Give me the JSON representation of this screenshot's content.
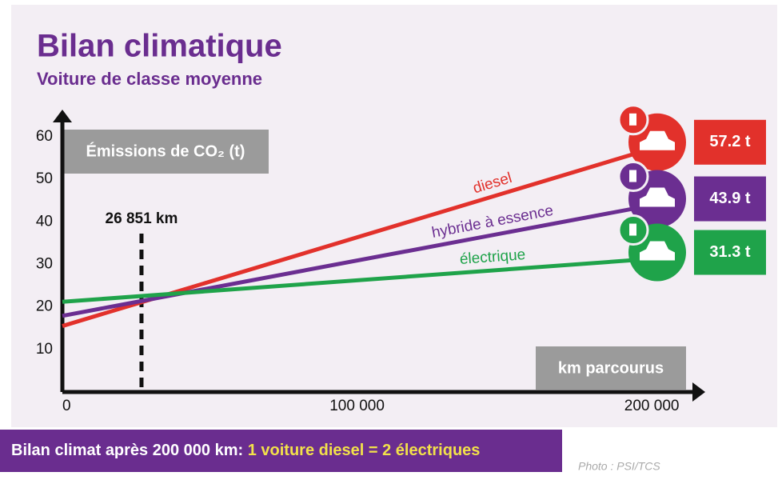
{
  "chart_data": {
    "type": "line",
    "title": "Bilan climatique",
    "subtitle": "Voiture de classe moyenne",
    "y_label": "Émissions de CO₂ (t)",
    "x_label": "km parcourus",
    "x": [
      0,
      200000
    ],
    "series": [
      {
        "name": "diesel",
        "color": "#e2312b",
        "values": [
          15.5,
          57.2
        ],
        "value_labels": [
          null,
          "57.2 t"
        ]
      },
      {
        "name": "hybride à essence",
        "color": "#6b2e91",
        "values": [
          17.9,
          43.9
        ],
        "value_labels": [
          null,
          "43.9 t"
        ]
      },
      {
        "name": "électrique",
        "color": "#1fa34a",
        "values": [
          21.2,
          31.3
        ],
        "value_labels": [
          null,
          "31.3 t"
        ]
      }
    ],
    "xlim": [
      0,
      217600
    ],
    "ylim": [
      0,
      66
    ],
    "xticks": [
      0,
      {
        "value": 100000,
        "label": "100 000"
      },
      {
        "value": 200000,
        "label": "200 000"
      }
    ],
    "yticks": [
      10,
      20,
      30,
      40,
      50,
      60
    ],
    "annotations": [
      {
        "value": 26851,
        "label": "26 851 km"
      }
    ]
  },
  "footer": {
    "text": "Bilan climat après 200 000 km: ",
    "highlight": "1 voiture diesel = 2 électriques"
  },
  "credit": "Photo : PSI/TCS"
}
